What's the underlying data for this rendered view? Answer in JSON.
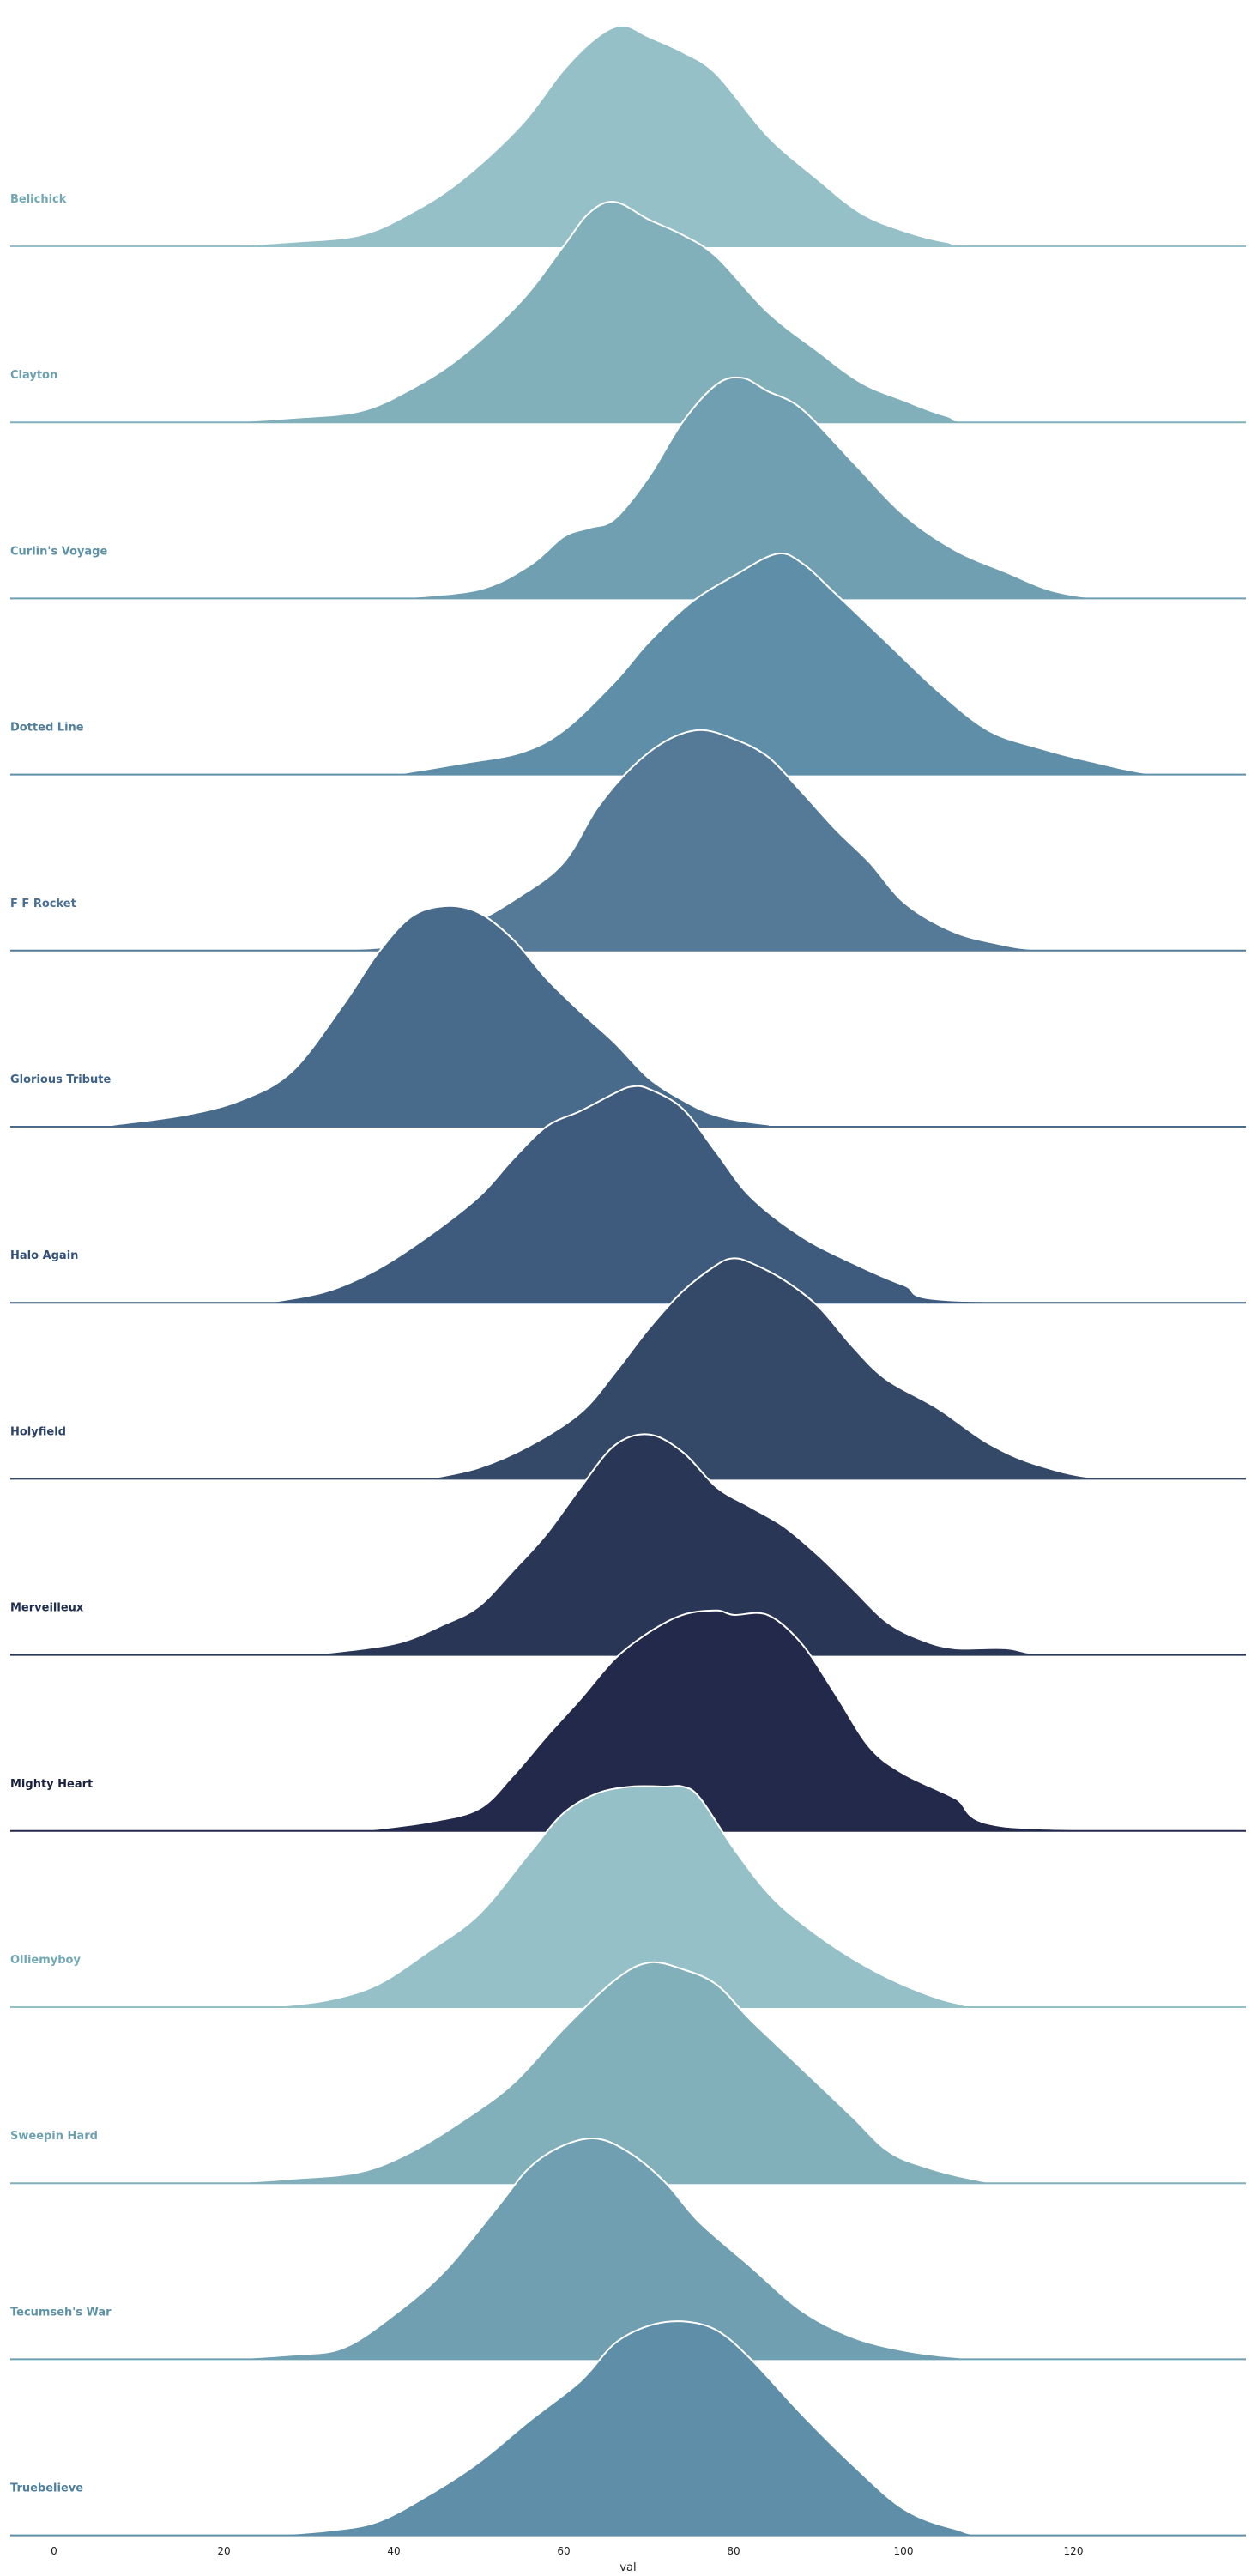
{
  "chart_data": {
    "type": "ridgeline",
    "xlabel": "val",
    "xlim": [
      -5,
      140
    ],
    "xticks": [
      0,
      20,
      40,
      60,
      80,
      100,
      120
    ],
    "grid": false,
    "legend": "none",
    "series": [
      {
        "name": "Belichick",
        "color": "#95c0c7",
        "label_color": "#72a8b4",
        "x": [
          20,
          28,
          36,
          42,
          48,
          55,
          60,
          64,
          67,
          70,
          74,
          78,
          84,
          90,
          95,
          100,
          105,
          110,
          140
        ],
        "y": [
          0,
          0.02,
          0.05,
          0.15,
          0.3,
          0.55,
          0.8,
          0.95,
          1.0,
          0.95,
          0.88,
          0.78,
          0.5,
          0.3,
          0.15,
          0.07,
          0.02,
          0,
          0
        ]
      },
      {
        "name": "Clayton",
        "color": "#81b0bb",
        "label_color": "#6ea0b0",
        "x": [
          20,
          28,
          36,
          42,
          48,
          55,
          60,
          63,
          66,
          70,
          74,
          78,
          84,
          90,
          95,
          100,
          105,
          110,
          140
        ],
        "y": [
          0,
          0.02,
          0.05,
          0.15,
          0.3,
          0.55,
          0.8,
          0.95,
          1.0,
          0.92,
          0.85,
          0.75,
          0.5,
          0.32,
          0.18,
          0.1,
          0.03,
          0,
          0
        ]
      },
      {
        "name": "Curlin's Voyage",
        "color": "#6f9fb1",
        "label_color": "#5c92a7",
        "x": [
          40,
          50,
          56,
          60,
          63,
          66,
          70,
          74,
          78,
          81,
          84,
          88,
          94,
          100,
          106,
          112,
          118,
          125,
          140
        ],
        "y": [
          0,
          0.04,
          0.15,
          0.28,
          0.32,
          0.36,
          0.55,
          0.8,
          0.97,
          1.0,
          0.94,
          0.86,
          0.62,
          0.38,
          0.22,
          0.12,
          0.03,
          0,
          0
        ]
      },
      {
        "name": "Dotted Line",
        "color": "#5f8fa8",
        "label_color": "#4f7f9c",
        "x": [
          40,
          48,
          55,
          60,
          66,
          70,
          75,
          80,
          85,
          88,
          92,
          98,
          104,
          110,
          116,
          122,
          130,
          140
        ],
        "y": [
          0,
          0.05,
          0.1,
          0.2,
          0.42,
          0.6,
          0.78,
          0.9,
          1.0,
          0.96,
          0.82,
          0.6,
          0.38,
          0.2,
          0.12,
          0.06,
          0,
          0
        ]
      },
      {
        "name": "F F Rocket",
        "color": "#557a98",
        "label_color": "#4a6f90",
        "x": [
          30,
          40,
          48,
          55,
          60,
          64,
          68,
          72,
          76,
          80,
          84,
          88,
          92,
          96,
          100,
          105,
          110,
          118,
          140
        ],
        "y": [
          0,
          0.02,
          0.1,
          0.25,
          0.4,
          0.65,
          0.83,
          0.95,
          1.0,
          0.96,
          0.88,
          0.72,
          0.55,
          0.4,
          0.22,
          0.1,
          0.04,
          0,
          0
        ]
      },
      {
        "name": "Glorious Tribute",
        "color": "#496b8b",
        "label_color": "#3e6288",
        "x": [
          5,
          15,
          22,
          28,
          34,
          38,
          42,
          46,
          50,
          54,
          58,
          62,
          66,
          70,
          74,
          78,
          84,
          90,
          140
        ],
        "y": [
          0,
          0.05,
          0.12,
          0.25,
          0.55,
          0.78,
          0.95,
          1.0,
          0.97,
          0.85,
          0.67,
          0.52,
          0.38,
          0.22,
          0.12,
          0.05,
          0.01,
          0,
          0
        ]
      },
      {
        "name": "Halo Again",
        "color": "#3e5b7d",
        "label_color": "#34507a",
        "x": [
          25,
          32,
          38,
          44,
          50,
          54,
          58,
          62,
          66,
          68,
          70,
          74,
          78,
          82,
          88,
          94,
          100,
          106,
          140
        ],
        "y": [
          0,
          0.05,
          0.15,
          0.3,
          0.48,
          0.65,
          0.8,
          0.87,
          0.95,
          0.98,
          0.97,
          0.88,
          0.68,
          0.48,
          0.3,
          0.18,
          0.08,
          0.01,
          0
        ]
      },
      {
        "name": "Holyfield",
        "color": "#344867",
        "label_color": "#2c4266",
        "x": [
          44,
          50,
          56,
          62,
          66,
          70,
          74,
          78,
          80,
          82,
          86,
          90,
          94,
          98,
          104,
          110,
          116,
          124,
          140
        ],
        "y": [
          0,
          0.05,
          0.15,
          0.3,
          0.48,
          0.68,
          0.85,
          0.97,
          1.0,
          0.98,
          0.9,
          0.78,
          0.6,
          0.45,
          0.32,
          0.16,
          0.06,
          0,
          0
        ]
      },
      {
        "name": "Merveilleux",
        "color": "#2a3656",
        "label_color": "#1f2d4f",
        "x": [
          30,
          40,
          46,
          50,
          54,
          58,
          62,
          66,
          70,
          74,
          78,
          82,
          86,
          90,
          94,
          98,
          102,
          106,
          112,
          118,
          140
        ],
        "y": [
          0,
          0.05,
          0.14,
          0.22,
          0.38,
          0.55,
          0.76,
          0.95,
          1.0,
          0.92,
          0.76,
          0.67,
          0.58,
          0.45,
          0.3,
          0.15,
          0.07,
          0.03,
          0.03,
          0,
          0
        ]
      },
      {
        "name": "Mighty Heart",
        "color": "#23294a",
        "label_color": "#1b2140",
        "x": [
          36,
          44,
          50,
          54,
          58,
          62,
          66,
          70,
          74,
          78,
          80,
          84,
          88,
          92,
          96,
          100,
          106,
          112,
          140
        ],
        "y": [
          0,
          0.04,
          0.1,
          0.25,
          0.43,
          0.6,
          0.78,
          0.9,
          0.98,
          1.0,
          0.98,
          0.98,
          0.85,
          0.62,
          0.38,
          0.26,
          0.15,
          0.02,
          0
        ]
      },
      {
        "name": "Olliemyboy",
        "color": "#95c0c7",
        "label_color": "#72a8b4",
        "x": [
          25,
          32,
          38,
          44,
          50,
          56,
          60,
          64,
          68,
          72,
          74,
          76,
          80,
          84,
          88,
          94,
          100,
          106,
          112,
          140
        ],
        "y": [
          0,
          0.03,
          0.1,
          0.25,
          0.42,
          0.7,
          0.88,
          0.97,
          1.0,
          1.0,
          1.0,
          0.95,
          0.72,
          0.52,
          0.38,
          0.22,
          0.1,
          0.02,
          0,
          0
        ]
      },
      {
        "name": "Sweepin Hard",
        "color": "#81b0bb",
        "label_color": "#6ea0b0",
        "x": [
          20,
          28,
          36,
          42,
          48,
          54,
          60,
          66,
          70,
          74,
          78,
          82,
          88,
          94,
          98,
          102,
          108,
          114,
          140
        ],
        "y": [
          0,
          0.02,
          0.05,
          0.14,
          0.28,
          0.45,
          0.7,
          0.92,
          1.0,
          0.97,
          0.9,
          0.74,
          0.52,
          0.3,
          0.15,
          0.08,
          0.02,
          0,
          0
        ]
      },
      {
        "name": "Tecumseh's War",
        "color": "#6f9fb1",
        "label_color": "#5c92a7",
        "x": [
          20,
          28,
          34,
          40,
          46,
          52,
          56,
          60,
          64,
          68,
          72,
          76,
          82,
          88,
          94,
          100,
          106,
          112,
          140
        ],
        "y": [
          0,
          0.02,
          0.05,
          0.2,
          0.4,
          0.68,
          0.87,
          0.97,
          1.0,
          0.93,
          0.8,
          0.62,
          0.42,
          0.22,
          0.1,
          0.04,
          0.01,
          0,
          0
        ]
      },
      {
        "name": "Truebelieve",
        "color": "#5f8fa8",
        "label_color": "#4f7f9c",
        "x": [
          25,
          32,
          38,
          44,
          50,
          56,
          62,
          66,
          70,
          74,
          78,
          82,
          88,
          94,
          100,
          106,
          112,
          140
        ],
        "y": [
          0,
          0.02,
          0.06,
          0.18,
          0.33,
          0.52,
          0.7,
          0.87,
          0.95,
          0.97,
          0.93,
          0.8,
          0.55,
          0.32,
          0.12,
          0.03,
          0,
          0
        ]
      }
    ]
  }
}
